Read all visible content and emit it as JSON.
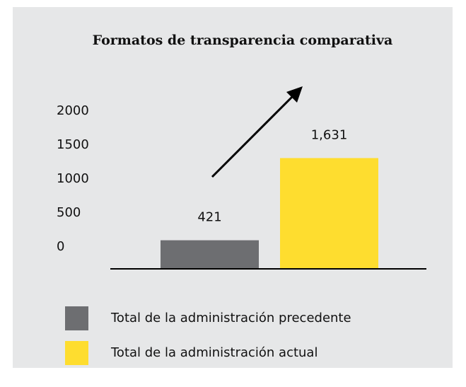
{
  "chart_data": {
    "type": "bar",
    "title": "Formatos de transparencia comparativa",
    "categories": [
      "Total de la administración precedente",
      "Total de la administración actual"
    ],
    "values": [
      421,
      1631
    ],
    "value_labels": [
      "421",
      "1,631"
    ],
    "colors": [
      "#6d6e71",
      "#fedd2f"
    ],
    "ylim": [
      0,
      2000
    ],
    "yticks": [
      0,
      500,
      1000,
      1500,
      2000
    ],
    "grid": false,
    "legend": "bottom"
  }
}
